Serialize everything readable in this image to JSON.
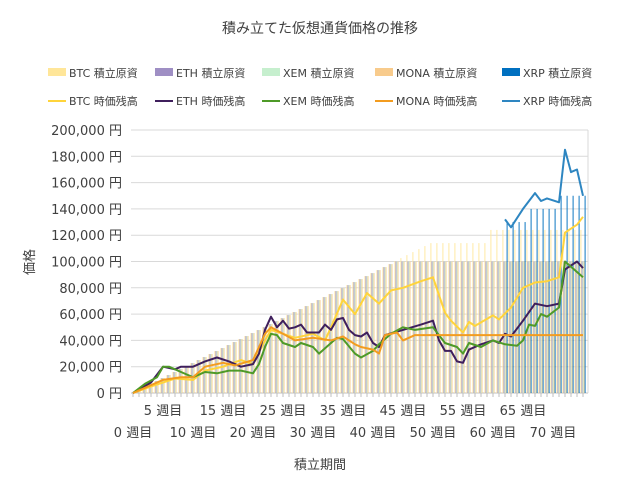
{
  "chart_data": {
    "type": "bar+line",
    "title": "積み立てた仮想通貨価格の推移",
    "xlabel": "積立期間",
    "ylabel": "価格",
    "ylim": [
      0,
      200000
    ],
    "xlim": [
      0,
      75
    ],
    "grid": true,
    "legend_position": "top",
    "y_ticks": [
      "0 円",
      "20,000 円",
      "40,000 円",
      "60,000 円",
      "80,000 円",
      "100,000 円",
      "120,000 円",
      "140,000 円",
      "160,000 円",
      "180,000 円",
      "200,000 円"
    ],
    "x_ticks": [
      {
        "week": 0,
        "label": "0 週目"
      },
      {
        "week": 5,
        "label": "5 週目"
      },
      {
        "week": 10,
        "label": "10 週目"
      },
      {
        "week": 15,
        "label": "15 週目"
      },
      {
        "week": 20,
        "label": "20 週目"
      },
      {
        "week": 25,
        "label": "25 週目"
      },
      {
        "week": 30,
        "label": "30 週目"
      },
      {
        "week": 35,
        "label": "35 週目"
      },
      {
        "week": 40,
        "label": "40 週目"
      },
      {
        "week": 45,
        "label": "45 週目"
      },
      {
        "week": 50,
        "label": "50 週目"
      },
      {
        "week": 55,
        "label": "55 週目"
      },
      {
        "week": 60,
        "label": "60 週目"
      },
      {
        "week": 65,
        "label": "65 週目"
      },
      {
        "week": 70,
        "label": "70 週目"
      }
    ],
    "bar_series": [
      {
        "name": "BTC  積立原資",
        "color": "#ffe699",
        "values": [
          0,
          2280,
          4560,
          6840,
          9120,
          11400,
          13680,
          15960,
          18240,
          20520,
          22800,
          25080,
          27360,
          29640,
          31920,
          34200,
          36480,
          38760,
          41040,
          43320,
          45600,
          47880,
          50160,
          52440,
          54720,
          57000,
          59280,
          61560,
          63840,
          66120,
          68400,
          70680,
          72960,
          75240,
          77520,
          79800,
          82080,
          84360,
          86640,
          88920,
          91200,
          93480,
          95760,
          98040,
          100320,
          102600,
          104880,
          107160,
          109440,
          111720,
          114000,
          114000,
          114000,
          114000,
          114000,
          114000,
          114000,
          114000,
          114000,
          114000,
          124000,
          124000,
          124000,
          124000,
          124000,
          124000,
          124000,
          124000,
          124000,
          124000,
          124000,
          124000,
          124000,
          124000,
          124000,
          124000
        ]
      },
      {
        "name": "ETH  積立原資",
        "color": "#9f8fc4",
        "values": [
          0,
          2280,
          4560,
          6840,
          9120,
          11400,
          13680,
          15960,
          18240,
          20520,
          22800,
          25080,
          27360,
          29640,
          31920,
          34200,
          36480,
          38760,
          41040,
          43320,
          45600,
          47880,
          50160,
          52440,
          54720,
          57000,
          59280,
          61560,
          63840,
          66120,
          68400,
          70680,
          72960,
          75240,
          77520,
          79800,
          82080,
          84360,
          86640,
          88920,
          91200,
          93480,
          95760,
          98040,
          100000,
          100000,
          100000,
          100000,
          100000,
          100000,
          100000,
          100000,
          100000,
          100000,
          100000,
          100000,
          100000,
          100000,
          100000,
          100000,
          100000,
          100000,
          100000,
          100000,
          100000,
          100000,
          100000,
          100000,
          100000,
          100000,
          100000,
          100000,
          100000,
          100000,
          100000,
          100000
        ]
      },
      {
        "name": "XEM  積立原資",
        "color": "#c6efce",
        "values": [
          0,
          2280,
          4560,
          6840,
          9120,
          11400,
          13680,
          15960,
          18240,
          20520,
          22800,
          25080,
          27360,
          29640,
          31920,
          34200,
          36480,
          38760,
          41040,
          43320,
          45600,
          47880,
          50160,
          52440,
          54720,
          57000,
          59280,
          61560,
          63840,
          66120,
          68400,
          70680,
          72960,
          75240,
          77520,
          79800,
          82080,
          84360,
          86640,
          88920,
          91200,
          93480,
          95760,
          98040,
          100000,
          100000,
          100000,
          100000,
          100000,
          100000,
          100000,
          100000,
          100000,
          100000,
          100000,
          100000,
          100000,
          100000,
          100000,
          100000,
          100000,
          100000,
          100000,
          100000,
          100000,
          100000,
          100000,
          100000,
          100000,
          100000,
          100000,
          100000,
          100000,
          100000,
          100000,
          100000
        ]
      },
      {
        "name": "MONA  積立原資",
        "color": "#f8cb8c",
        "values": [
          0,
          2280,
          4560,
          6840,
          9120,
          11400,
          13680,
          15960,
          18240,
          20520,
          22800,
          25080,
          27360,
          29640,
          31920,
          34200,
          36480,
          38760,
          41040,
          43320,
          45600,
          47880,
          50160,
          52440,
          54720,
          57000,
          59280,
          61560,
          63840,
          66120,
          68400,
          70680,
          72960,
          75240,
          77520,
          79800,
          82080,
          84360,
          86640,
          88920,
          91200,
          93480,
          95760,
          98040,
          100000,
          100000,
          100000,
          100000,
          100000,
          100000,
          100000,
          100000,
          100000,
          100000,
          100000,
          100000,
          100000,
          100000,
          100000,
          100000,
          100000,
          100000,
          100000,
          100000,
          100000,
          100000,
          100000,
          100000,
          100000,
          100000,
          100000,
          100000,
          100000,
          100000,
          100000,
          100000
        ]
      },
      {
        "name": "XRP  積立原資",
        "color": "#0070c0",
        "values": [
          0,
          0,
          0,
          0,
          0,
          0,
          0,
          0,
          0,
          0,
          0,
          0,
          0,
          0,
          0,
          0,
          0,
          0,
          0,
          0,
          0,
          0,
          0,
          0,
          0,
          0,
          0,
          0,
          0,
          0,
          0,
          0,
          0,
          0,
          0,
          0,
          0,
          0,
          0,
          0,
          0,
          0,
          0,
          0,
          0,
          0,
          0,
          0,
          0,
          0,
          0,
          0,
          0,
          0,
          0,
          0,
          0,
          0,
          0,
          0,
          0,
          0,
          130000,
          130000,
          130000,
          130000,
          140000,
          140000,
          140000,
          140000,
          140000,
          150000,
          150000,
          150000,
          150000,
          150000
        ]
      }
    ],
    "line_series": [
      {
        "name": "BTC  時価残高",
        "color": "#ffd43b",
        "points": [
          [
            0,
            0
          ],
          [
            3,
            5000
          ],
          [
            5,
            8000
          ],
          [
            7,
            11000
          ],
          [
            10,
            10000
          ],
          [
            12,
            17000
          ],
          [
            15,
            20000
          ],
          [
            18,
            25000
          ],
          [
            20,
            22000
          ],
          [
            22,
            40000
          ],
          [
            23,
            48000
          ],
          [
            25,
            45000
          ],
          [
            27,
            42000
          ],
          [
            30,
            45000
          ],
          [
            32,
            40000
          ],
          [
            33,
            50000
          ],
          [
            35,
            71000
          ],
          [
            37,
            60000
          ],
          [
            39,
            76000
          ],
          [
            41,
            68000
          ],
          [
            43,
            78000
          ],
          [
            45,
            80000
          ],
          [
            48,
            85000
          ],
          [
            50,
            88000
          ],
          [
            52,
            61000
          ],
          [
            53,
            55000
          ],
          [
            55,
            46000
          ],
          [
            56,
            54000
          ],
          [
            57,
            51000
          ],
          [
            60,
            59000
          ],
          [
            61,
            56000
          ],
          [
            63,
            65000
          ],
          [
            65,
            80000
          ],
          [
            67,
            84000
          ],
          [
            69,
            85000
          ],
          [
            71,
            88000
          ],
          [
            72,
            122000
          ],
          [
            74,
            128000
          ],
          [
            75,
            134000
          ]
        ]
      },
      {
        "name": "ETH  時価残高",
        "color": "#3f1f5c",
        "points": [
          [
            0,
            0
          ],
          [
            3,
            8000
          ],
          [
            5,
            20000
          ],
          [
            7,
            18000
          ],
          [
            8,
            20000
          ],
          [
            10,
            20000
          ],
          [
            12,
            24000
          ],
          [
            14,
            27000
          ],
          [
            16,
            24000
          ],
          [
            18,
            20000
          ],
          [
            20,
            22000
          ],
          [
            21,
            30000
          ],
          [
            22,
            48000
          ],
          [
            23,
            58000
          ],
          [
            24,
            50000
          ],
          [
            25,
            55000
          ],
          [
            26,
            49000
          ],
          [
            27,
            50000
          ],
          [
            28,
            52000
          ],
          [
            29,
            46000
          ],
          [
            31,
            46000
          ],
          [
            32,
            52000
          ],
          [
            33,
            48000
          ],
          [
            34,
            56000
          ],
          [
            35,
            57000
          ],
          [
            36,
            48000
          ],
          [
            37,
            44000
          ],
          [
            38,
            43000
          ],
          [
            39,
            46000
          ],
          [
            40,
            38000
          ],
          [
            41,
            35000
          ],
          [
            42,
            44000
          ],
          [
            45,
            48000
          ],
          [
            48,
            52000
          ],
          [
            50,
            55000
          ],
          [
            51,
            40000
          ],
          [
            52,
            32000
          ],
          [
            53,
            32000
          ],
          [
            54,
            24000
          ],
          [
            55,
            23000
          ],
          [
            56,
            33000
          ],
          [
            58,
            37000
          ],
          [
            60,
            40000
          ],
          [
            61,
            38000
          ],
          [
            62,
            45000
          ],
          [
            63,
            43000
          ],
          [
            65,
            55000
          ],
          [
            67,
            68000
          ],
          [
            69,
            66000
          ],
          [
            71,
            68000
          ],
          [
            72,
            94000
          ],
          [
            74,
            100000
          ],
          [
            75,
            95000
          ]
        ]
      },
      {
        "name": "XEM  時価残高",
        "color": "#4e9a28",
        "points": [
          [
            0,
            0
          ],
          [
            2,
            7000
          ],
          [
            4,
            12000
          ],
          [
            5,
            20000
          ],
          [
            6,
            20000
          ],
          [
            8,
            16000
          ],
          [
            10,
            12000
          ],
          [
            12,
            16000
          ],
          [
            14,
            15000
          ],
          [
            16,
            17000
          ],
          [
            18,
            17000
          ],
          [
            20,
            15000
          ],
          [
            21,
            22000
          ],
          [
            22,
            35000
          ],
          [
            23,
            45000
          ],
          [
            24,
            44000
          ],
          [
            25,
            38000
          ],
          [
            27,
            35000
          ],
          [
            28,
            38000
          ],
          [
            30,
            35000
          ],
          [
            31,
            30000
          ],
          [
            33,
            38000
          ],
          [
            34,
            42000
          ],
          [
            35,
            41000
          ],
          [
            37,
            30000
          ],
          [
            38,
            27000
          ],
          [
            40,
            32000
          ],
          [
            41,
            37000
          ],
          [
            43,
            45000
          ],
          [
            45,
            50000
          ],
          [
            47,
            48000
          ],
          [
            50,
            50000
          ],
          [
            52,
            38000
          ],
          [
            54,
            35000
          ],
          [
            55,
            30000
          ],
          [
            56,
            38000
          ],
          [
            58,
            35000
          ],
          [
            60,
            40000
          ],
          [
            62,
            37000
          ],
          [
            64,
            36000
          ],
          [
            65,
            40000
          ],
          [
            66,
            52000
          ],
          [
            67,
            51000
          ],
          [
            68,
            60000
          ],
          [
            69,
            58000
          ],
          [
            71,
            65000
          ],
          [
            72,
            100000
          ],
          [
            75,
            88000
          ]
        ]
      },
      {
        "name": "MONA  時価残高",
        "color": "#f39c1f",
        "points": [
          [
            0,
            0
          ],
          [
            5,
            10000
          ],
          [
            8,
            12000
          ],
          [
            10,
            12000
          ],
          [
            12,
            20000
          ],
          [
            15,
            23000
          ],
          [
            17,
            21000
          ],
          [
            20,
            25000
          ],
          [
            21,
            35000
          ],
          [
            22,
            45000
          ],
          [
            23,
            50000
          ],
          [
            25,
            45000
          ],
          [
            27,
            40000
          ],
          [
            30,
            42000
          ],
          [
            33,
            40000
          ],
          [
            35,
            43000
          ],
          [
            37,
            37000
          ],
          [
            38,
            35000
          ],
          [
            40,
            33000
          ],
          [
            41,
            30000
          ],
          [
            42,
            44000
          ],
          [
            44,
            46000
          ],
          [
            45,
            40000
          ],
          [
            47,
            44000
          ],
          [
            75,
            44000
          ]
        ]
      },
      {
        "name": "XRP  時価残高",
        "color": "#2e86c1",
        "points": [
          [
            62,
            132000
          ],
          [
            63,
            126000
          ],
          [
            65,
            140000
          ],
          [
            67,
            152000
          ],
          [
            68,
            146000
          ],
          [
            69,
            148000
          ],
          [
            71,
            145000
          ],
          [
            72,
            185000
          ],
          [
            73,
            168000
          ],
          [
            74,
            170000
          ],
          [
            75,
            150000
          ]
        ]
      }
    ]
  }
}
